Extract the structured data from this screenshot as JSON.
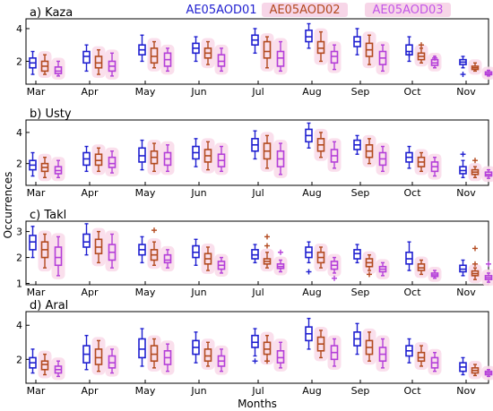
{
  "chart_data": {
    "type": "boxplot",
    "xlabel": "Months",
    "ylabel": "Occurrences",
    "categories": [
      "Mar",
      "Apr",
      "May",
      "Jun",
      "Jul",
      "Aug",
      "Sep",
      "Oct",
      "Nov"
    ],
    "series_colors": [
      "#1f1fd0",
      "#b34a1f",
      "#b43fd9"
    ],
    "legend": {
      "names": [
        "AE05AOD01",
        "AE05AOD02",
        "AE05AOD03"
      ],
      "colors": [
        "#1f1fd0",
        "#b34a1f",
        "#c356e8"
      ],
      "highlight": "#f7d6e8",
      "placement": "top-right"
    },
    "panels": [
      {
        "title": "a) Kaza",
        "ylim": [
          0.6,
          4.6
        ],
        "yticks": [
          2,
          4
        ],
        "boxes": [
          [
            [
              1.2,
              1.6,
              1.9,
              2.2,
              2.6
            ],
            [
              1.2,
              1.4,
              1.7,
              2.0,
              2.4
            ],
            [
              1.1,
              1.25,
              1.4,
              1.65,
              2.0
            ]
          ],
          [
            [
              1.4,
              1.9,
              2.3,
              2.6,
              3.0
            ],
            [
              1.2,
              1.6,
              1.9,
              2.3,
              2.7
            ],
            [
              1.1,
              1.4,
              1.7,
              2.0,
              2.5
            ]
          ],
          [
            [
              2.0,
              2.4,
              2.7,
              3.0,
              3.6
            ],
            [
              1.6,
              1.9,
              2.3,
              2.8,
              3.2
            ],
            [
              1.4,
              1.7,
              2.1,
              2.5,
              2.8
            ]
          ],
          [
            [
              2.0,
              2.5,
              2.8,
              3.1,
              3.5
            ],
            [
              1.8,
              2.2,
              2.5,
              2.8,
              3.2
            ],
            [
              1.4,
              1.7,
              2.0,
              2.4,
              2.8
            ]
          ],
          [
            [
              2.5,
              3.0,
              3.3,
              3.6,
              4.0
            ],
            [
              1.6,
              2.2,
              2.6,
              3.2,
              3.5
            ],
            [
              1.4,
              1.7,
              2.2,
              2.6,
              3.2
            ]
          ],
          [
            [
              2.8,
              3.2,
              3.5,
              3.9,
              4.3
            ],
            [
              2.0,
              2.5,
              2.8,
              3.2,
              3.8
            ],
            [
              1.5,
              1.9,
              2.3,
              2.6,
              3.0
            ]
          ],
          [
            [
              2.4,
              2.9,
              3.2,
              3.5,
              4.0
            ],
            [
              1.8,
              2.3,
              2.7,
              3.1,
              3.6
            ],
            [
              1.4,
              1.8,
              2.2,
              2.6,
              3.0
            ]
          ],
          [
            [
              2.0,
              2.4,
              2.6,
              3.0,
              3.5
            ],
            [
              1.9,
              2.1,
              2.3,
              2.5,
              2.8
            ],
            [
              1.6,
              1.75,
              1.9,
              2.1,
              2.3
            ]
          ],
          [
            [
              1.6,
              1.8,
              1.95,
              2.1,
              2.3
            ],
            [
              1.4,
              1.5,
              1.6,
              1.7,
              1.9
            ],
            [
              1.1,
              1.18,
              1.25,
              1.35,
              1.45
            ]
          ]
        ],
        "outliers": [
          [],
          [],
          [],
          [],
          [],
          [],
          [],
          [
            [
              2.4
            ],
            [
              3.0
            ],
            [
              2.2
            ]
          ],
          [
            [
              1.2
            ],
            [],
            []
          ]
        ]
      },
      {
        "title": "b) Usty",
        "ylim": [
          0.6,
          4.8
        ],
        "yticks": [
          2,
          4
        ],
        "boxes": [
          [
            [
              1.2,
              1.6,
              1.9,
              2.2,
              2.7
            ],
            [
              1.1,
              1.5,
              1.75,
              2.0,
              2.4
            ],
            [
              1.1,
              1.35,
              1.55,
              1.8,
              2.2
            ]
          ],
          [
            [
              1.5,
              1.9,
              2.3,
              2.7,
              3.1
            ],
            [
              1.5,
              1.9,
              2.2,
              2.6,
              3.0
            ],
            [
              1.4,
              1.75,
              2.0,
              2.4,
              2.8
            ]
          ],
          [
            [
              1.6,
              2.1,
              2.5,
              3.0,
              3.5
            ],
            [
              1.5,
              2.0,
              2.4,
              2.8,
              3.3
            ],
            [
              1.5,
              1.9,
              2.3,
              2.7,
              3.2
            ]
          ],
          [
            [
              1.8,
              2.3,
              2.7,
              3.1,
              3.6
            ],
            [
              1.6,
              2.1,
              2.5,
              2.9,
              3.4
            ],
            [
              1.5,
              1.8,
              2.2,
              2.6,
              3.1
            ]
          ],
          [
            [
              2.3,
              2.8,
              3.2,
              3.6,
              4.1
            ],
            [
              1.7,
              2.3,
              2.8,
              3.3,
              3.8
            ],
            [
              1.3,
              1.8,
              2.3,
              2.8,
              3.3
            ]
          ],
          [
            [
              3.0,
              3.4,
              3.8,
              4.2,
              4.6
            ],
            [
              2.4,
              2.8,
              3.2,
              3.6,
              4.0
            ],
            [
              1.7,
              2.1,
              2.5,
              2.9,
              3.4
            ]
          ],
          [
            [
              2.6,
              2.9,
              3.2,
              3.5,
              3.8
            ],
            [
              2.0,
              2.4,
              2.8,
              3.2,
              3.6
            ],
            [
              1.5,
              1.9,
              2.3,
              2.7,
              3.1
            ]
          ],
          [
            [
              1.7,
              2.1,
              2.4,
              2.7,
              3.1
            ],
            [
              1.5,
              1.8,
              2.1,
              2.4,
              2.7
            ],
            [
              1.2,
              1.5,
              1.8,
              2.1,
              2.4
            ]
          ],
          [
            [
              1.1,
              1.35,
              1.55,
              1.8,
              2.2
            ],
            [
              1.1,
              1.3,
              1.45,
              1.6,
              1.8
            ],
            [
              1.05,
              1.2,
              1.3,
              1.45,
              1.6
            ]
          ]
        ],
        "outliers": [
          [],
          [],
          [],
          [],
          [],
          [],
          [],
          [],
          [
            [
              2.6
            ],
            [
              2.2
            ],
            []
          ]
        ]
      },
      {
        "title": "c) Takl",
        "ylim": [
          0.95,
          3.4
        ],
        "yticks": [
          1,
          2,
          3
        ],
        "boxes": [
          [
            [
              2.0,
              2.3,
              2.6,
              2.85,
              3.2
            ],
            [
              1.6,
              2.0,
              2.3,
              2.6,
              2.9
            ],
            [
              1.3,
              1.7,
              2.0,
              2.4,
              2.8
            ]
          ],
          [
            [
              2.1,
              2.4,
              2.6,
              2.9,
              3.3
            ],
            [
              1.8,
              2.15,
              2.4,
              2.7,
              3.0
            ],
            [
              1.6,
              1.9,
              2.2,
              2.5,
              2.9
            ]
          ],
          [
            [
              1.8,
              2.1,
              2.3,
              2.5,
              2.8
            ],
            [
              1.7,
              1.9,
              2.1,
              2.3,
              2.6
            ],
            [
              1.6,
              1.8,
              1.9,
              2.1,
              2.3
            ]
          ],
          [
            [
              1.7,
              2.0,
              2.2,
              2.45,
              2.7
            ],
            [
              1.5,
              1.75,
              1.95,
              2.15,
              2.4
            ],
            [
              1.4,
              1.55,
              1.7,
              1.85,
              2.0
            ]
          ],
          [
            [
              1.8,
              1.95,
              2.1,
              2.3,
              2.5
            ],
            [
              1.6,
              1.75,
              1.85,
              1.95,
              2.2
            ],
            [
              1.45,
              1.58,
              1.65,
              1.75,
              1.9
            ]
          ],
          [
            [
              1.8,
              2.0,
              2.2,
              2.4,
              2.6
            ],
            [
              1.6,
              1.8,
              2.0,
              2.2,
              2.4
            ],
            [
              1.4,
              1.55,
              1.7,
              1.85,
              2.0
            ]
          ],
          [
            [
              1.8,
              1.95,
              2.15,
              2.3,
              2.5
            ],
            [
              1.5,
              1.65,
              1.8,
              1.95,
              2.1
            ],
            [
              1.3,
              1.45,
              1.55,
              1.65,
              1.8
            ]
          ],
          [
            [
              1.5,
              1.75,
              1.95,
              2.2,
              2.6
            ],
            [
              1.35,
              1.5,
              1.6,
              1.75,
              1.9
            ],
            [
              1.2,
              1.27,
              1.33,
              1.4,
              1.5
            ]
          ],
          [
            [
              1.3,
              1.45,
              1.55,
              1.7,
              1.9
            ],
            [
              1.15,
              1.3,
              1.38,
              1.48,
              1.6
            ],
            [
              1.05,
              1.15,
              1.22,
              1.3,
              1.4
            ]
          ]
        ],
        "outliers": [
          [],
          [],
          [
            [],
            [
              3.05
            ],
            []
          ],
          [],
          [
            [],
            [
              2.8,
              2.45
            ],
            [
              2.2
            ]
          ],
          [
            [
              1.45
            ],
            [],
            [
              1.2
            ]
          ],
          [
            [],
            [
              1.35
            ],
            []
          ],
          [],
          [
            [],
            [
              2.35,
              1.75
            ],
            [
              1.75
            ]
          ]
        ]
      },
      {
        "title": "d) Aral",
        "ylim": [
          0.6,
          4.8
        ],
        "yticks": [
          2,
          4
        ],
        "boxes": [
          [
            [
              1.2,
              1.5,
              1.8,
              2.1,
              2.6
            ],
            [
              1.1,
              1.4,
              1.7,
              1.9,
              2.3
            ],
            [
              1.0,
              1.2,
              1.4,
              1.6,
              1.9
            ]
          ],
          [
            [
              1.4,
              1.8,
              2.3,
              2.8,
              3.4
            ],
            [
              1.3,
              1.7,
              2.1,
              2.6,
              3.1
            ],
            [
              1.2,
              1.5,
              1.8,
              2.2,
              2.6
            ]
          ],
          [
            [
              1.6,
              2.1,
              2.6,
              3.2,
              3.8
            ],
            [
              1.5,
              1.9,
              2.3,
              2.8,
              3.2
            ],
            [
              1.3,
              1.7,
              2.1,
              2.5,
              2.9
            ]
          ],
          [
            [
              1.8,
              2.3,
              2.7,
              3.1,
              3.6
            ],
            [
              1.6,
              1.9,
              2.2,
              2.6,
              3.0
            ],
            [
              1.3,
              1.6,
              1.9,
              2.2,
              2.6
            ]
          ],
          [
            [
              2.2,
              2.7,
              3.0,
              3.4,
              3.8
            ],
            [
              1.9,
              2.3,
              2.6,
              3.0,
              3.4
            ],
            [
              1.5,
              1.8,
              2.1,
              2.5,
              3.0
            ]
          ],
          [
            [
              2.6,
              3.1,
              3.5,
              3.9,
              4.4
            ],
            [
              2.1,
              2.5,
              2.9,
              3.3,
              3.7
            ],
            [
              1.6,
              2.0,
              2.4,
              2.8,
              3.2
            ]
          ],
          [
            [
              2.3,
              2.8,
              3.2,
              3.6,
              4.1
            ],
            [
              1.9,
              2.3,
              2.7,
              3.1,
              3.6
            ],
            [
              1.5,
              1.9,
              2.3,
              2.7,
              3.2
            ]
          ],
          [
            [
              1.8,
              2.2,
              2.5,
              2.8,
              3.2
            ],
            [
              1.6,
              1.9,
              2.1,
              2.4,
              2.8
            ],
            [
              1.3,
              1.5,
              1.8,
              2.1,
              2.4
            ]
          ],
          [
            [
              1.1,
              1.3,
              1.55,
              1.8,
              2.1
            ],
            [
              1.05,
              1.2,
              1.35,
              1.5,
              1.7
            ],
            [
              1.0,
              1.1,
              1.2,
              1.3,
              1.4
            ]
          ]
        ],
        "outliers": [
          [],
          [],
          [],
          [],
          [
            [
              1.9
            ],
            [
              1.9
            ],
            []
          ],
          [],
          [],
          [],
          []
        ]
      }
    ]
  }
}
